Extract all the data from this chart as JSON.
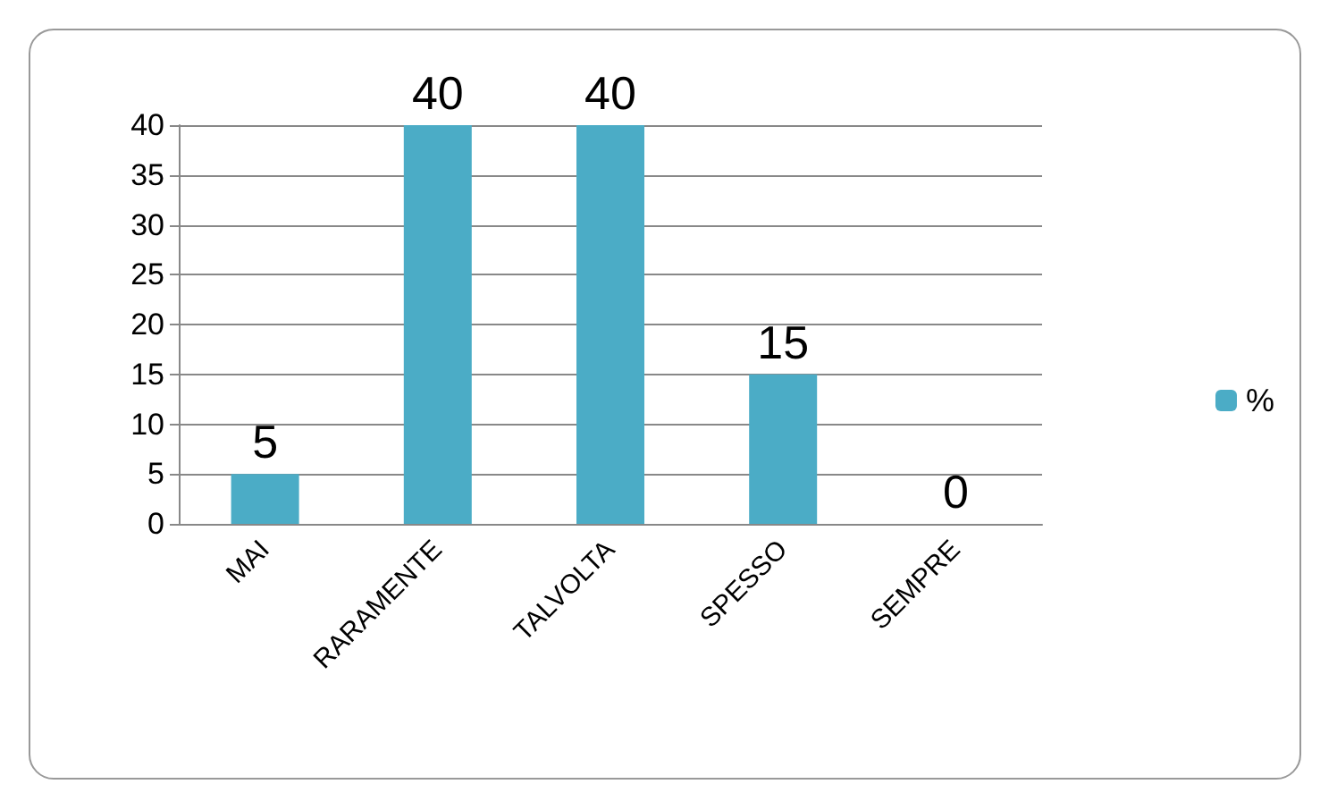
{
  "chart_data": {
    "type": "bar",
    "categories": [
      "MAI",
      "RARAMENTE",
      "TALVOLTA",
      "SPESSO",
      "SEMPRE"
    ],
    "series": [
      {
        "name": "%",
        "color": "#4bacc6",
        "values": [
          5,
          40,
          40,
          15,
          0
        ]
      }
    ],
    "ylim": [
      0,
      40
    ],
    "yticks": [
      0,
      5,
      10,
      15,
      20,
      25,
      30,
      35,
      40
    ],
    "grid": "y",
    "legend": "right",
    "data_labels": true
  }
}
